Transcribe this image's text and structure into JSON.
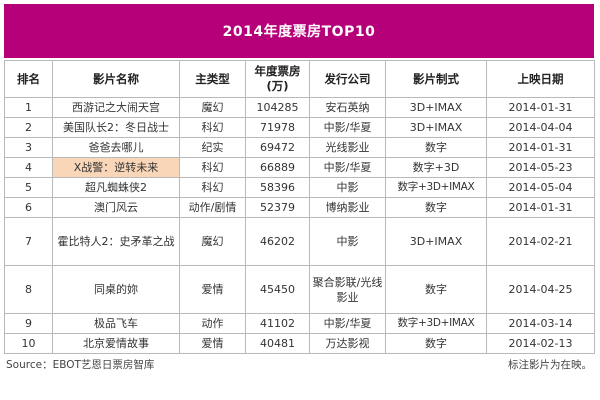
{
  "title": "2014年度票房TOP10",
  "headers": [
    "排名",
    "影片名称",
    "主类型",
    "年度票房(万)",
    "发行公司",
    "影片制式",
    "上映日期"
  ],
  "rows": [
    {
      "rank": "1",
      "name": "西游记之大闹天宫",
      "genre": "魔幻",
      "box": "104285",
      "dist": "安石英纳",
      "format": "3D+IMAX",
      "date": "2014-01-31"
    },
    {
      "rank": "2",
      "name": "美国队长2：冬日战士",
      "genre": "科幻",
      "box": "71978",
      "dist": "中影/华夏",
      "format": "3D+IMAX",
      "date": "2014-04-04"
    },
    {
      "rank": "3",
      "name": "爸爸去哪儿",
      "genre": "纪实",
      "box": "69472",
      "dist": "光线影业",
      "format": "数字",
      "date": "2014-01-31"
    },
    {
      "rank": "4",
      "name": "X战警：逆转未来",
      "genre": "科幻",
      "box": "66889",
      "dist": "中影/华夏",
      "format": "数字+3D",
      "date": "2014-05-23"
    },
    {
      "rank": "5",
      "name": "超凡蜘蛛侠2",
      "genre": "科幻",
      "box": "58396",
      "dist": "中影",
      "format": "数字+3D+IMAX",
      "date": "2014-05-04"
    },
    {
      "rank": "6",
      "name": "澳门风云",
      "genre": "动作/剧情",
      "box": "52379",
      "dist": "博纳影业",
      "format": "数字",
      "date": "2014-01-31"
    },
    {
      "rank": "7",
      "name": "霍比特人2：史矛革之战",
      "genre": "魔幻",
      "box": "46202",
      "dist": "中影",
      "format": "3D+IMAX",
      "date": "2014-02-21"
    },
    {
      "rank": "8",
      "name": "同桌的妳",
      "genre": "爱情",
      "box": "45450",
      "dist": "聚合影联/光线影业",
      "format": "数字",
      "date": "2014-04-25"
    },
    {
      "rank": "9",
      "name": "极品飞车",
      "genre": "动作",
      "box": "41102",
      "dist": "中影/华夏",
      "format": "数字+3D+IMAX",
      "date": "2014-03-14"
    },
    {
      "rank": "10",
      "name": "北京爱情故事",
      "genre": "爱情",
      "box": "40481",
      "dist": "万达影视",
      "format": "数字",
      "date": "2014-02-13"
    }
  ],
  "highlight_color": "#f9d6b8",
  "header_color": "#b5007a",
  "source": "Source：EBOT艺恩日票房智库",
  "note": "标注影片为在映。"
}
